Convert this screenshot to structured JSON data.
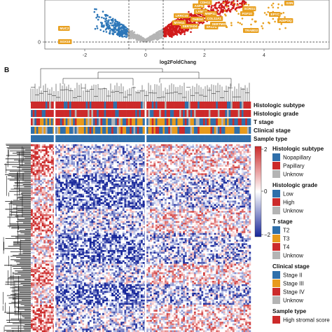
{
  "panel_b_label": "B",
  "volcano": {
    "x_label": "log2FoldChang",
    "x_ticks": [
      "-2",
      "0",
      "2",
      "4"
    ],
    "y_ticks": [
      "0"
    ],
    "up_genes": [
      "GSN",
      "ADIPOQ",
      "EPYC",
      "FGF10",
      "SCRG1",
      "LAMA2",
      "ASPN",
      "CDH11",
      "MYH11",
      "LRRC15",
      "THBS4",
      "COL11A1",
      "MMP11",
      "SERTAD4",
      "SFRP4",
      "TRABD2",
      "SERTMG"
    ],
    "down_genes": [
      "MUC2",
      "SOX10"
    ]
  },
  "heatmap": {
    "annotation_rows": [
      "Histologic subtype",
      "Histologic grade",
      "T stage",
      "Clinical stage",
      "Sample type"
    ],
    "color_key_ticks": [
      "2",
      "0",
      "−2"
    ]
  },
  "legends": [
    {
      "title": "Histologic subtype",
      "items": [
        {
          "label": "Nopapillary",
          "color": "#2f6faa"
        },
        {
          "label": "Papillary",
          "color": "#cc2a2a"
        },
        {
          "label": "Unknow",
          "color": "#b4b4b4"
        }
      ]
    },
    {
      "title": "Histologic grade",
      "items": [
        {
          "label": "Low",
          "color": "#2f6faa"
        },
        {
          "label": "High",
          "color": "#cc2a2a"
        },
        {
          "label": "Unknow",
          "color": "#b4b4b4"
        }
      ]
    },
    {
      "title": "T stage",
      "items": [
        {
          "label": "T2",
          "color": "#2f6faa"
        },
        {
          "label": "T3",
          "color": "#e89a1c"
        },
        {
          "label": "T4",
          "color": "#cc2a2a"
        },
        {
          "label": "Unknow",
          "color": "#b4b4b4"
        }
      ]
    },
    {
      "title": "Clinical stage",
      "items": [
        {
          "label": "Stage II",
          "color": "#2f6faa"
        },
        {
          "label": "Stage III",
          "color": "#e89a1c"
        },
        {
          "label": "Stage IV",
          "color": "#cc2a2a"
        },
        {
          "label": "Unknow",
          "color": "#b4b4b4"
        }
      ]
    },
    {
      "title": "Sample type",
      "items": [
        {
          "label": "High stromal score",
          "color": "#cc2a2a"
        }
      ]
    }
  ],
  "colors": {
    "blue": "#2f6faa",
    "red": "#cc2a2a",
    "orange": "#e89a1c",
    "gray": "#b4b4b4",
    "white": "#ffffff"
  }
}
